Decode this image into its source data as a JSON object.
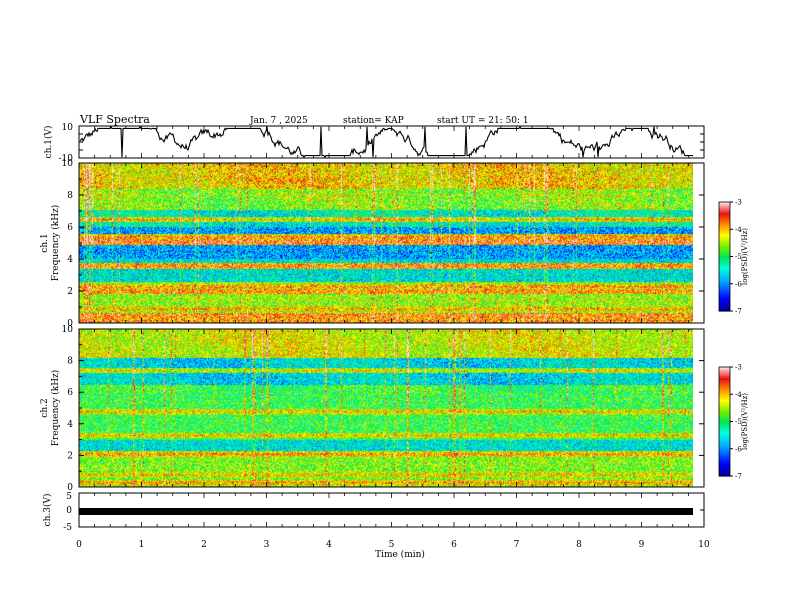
{
  "header": {
    "title": "VLF Spectra",
    "date": "Jan. 7 , 2025",
    "station": "station= KAP",
    "start": "start UT =  21: 50: 1"
  },
  "chart_data": [
    {
      "type": "line",
      "panel": "ch1-voltage",
      "ylabel": "ch.1(V)",
      "ylim": [
        -10,
        10
      ],
      "yticks": [
        "10",
        "-10"
      ],
      "x_range_min": [
        0,
        9.85
      ],
      "note": "Noisy voltage trace between about -8 and +8 V"
    },
    {
      "type": "heatmap",
      "panel": "ch1-spectrogram",
      "ylabel": "ch.1\nFrequency (kHz)",
      "ylabel_lines": [
        "ch.1",
        "Frequency (kHz)"
      ],
      "ylim": [
        0,
        10
      ],
      "yticks": [
        "0",
        "2",
        "4",
        "6",
        "8",
        "10"
      ],
      "xlim": [
        0,
        10
      ],
      "colorbar": {
        "label": "log(PSD)(V²/Hz)",
        "range": [
          -7,
          -3
        ],
        "ticks": [
          "-3",
          "-4",
          "-5",
          "-6",
          "-7"
        ]
      },
      "bands_khz": [
        {
          "f": 0.2,
          "level": -3.6
        },
        {
          "f": 0.5,
          "level": -3.5
        },
        {
          "f": 0.9,
          "level": -3.9
        },
        {
          "f": 1.5,
          "level": -4.6
        },
        {
          "f": 2.0,
          "level": -3.6
        },
        {
          "f": 2.3,
          "level": -3.8
        },
        {
          "f": 3.1,
          "level": -5.8
        },
        {
          "f": 3.6,
          "level": -3.6
        },
        {
          "f": 4.4,
          "level": -6.0
        },
        {
          "f": 5.1,
          "level": -3.4
        },
        {
          "f": 5.4,
          "level": -3.7
        },
        {
          "f": 5.9,
          "level": -6.2
        },
        {
          "f": 6.5,
          "level": -4.0
        },
        {
          "f": 7.0,
          "level": -5.4
        },
        {
          "f": 8.0,
          "level": -4.3
        },
        {
          "f": 9.0,
          "level": -4.0
        }
      ]
    },
    {
      "type": "heatmap",
      "panel": "ch2-spectrogram",
      "ylabel_lines": [
        "ch.2",
        "Frequency (kHz)"
      ],
      "ylim": [
        0,
        10
      ],
      "yticks": [
        "0",
        "2",
        "4",
        "6",
        "8",
        "10"
      ],
      "xlim": [
        0,
        10
      ],
      "colorbar": {
        "label": "log(PSD)(V²/Hz)",
        "range": [
          -7,
          -3
        ],
        "ticks": [
          "-3",
          "-4",
          "-5",
          "-6",
          "-7"
        ]
      },
      "bands_khz": [
        {
          "f": 0.3,
          "level": -3.8
        },
        {
          "f": 0.8,
          "level": -4.0
        },
        {
          "f": 1.6,
          "level": -4.7
        },
        {
          "f": 2.1,
          "level": -3.8
        },
        {
          "f": 2.6,
          "level": -5.6
        },
        {
          "f": 3.3,
          "level": -4.0
        },
        {
          "f": 4.1,
          "level": -5.1
        },
        {
          "f": 4.8,
          "level": -4.0
        },
        {
          "f": 5.5,
          "level": -4.8
        },
        {
          "f": 6.7,
          "level": -5.8
        },
        {
          "f": 7.4,
          "level": -4.2
        },
        {
          "f": 8.6,
          "level": -4.4
        }
      ]
    },
    {
      "type": "line",
      "panel": "ch3-voltage",
      "ylabel": "ch.3(V)",
      "ylim": [
        -5,
        5
      ],
      "yticks": [
        "5",
        "0",
        "-5"
      ],
      "xlim": [
        0,
        10
      ],
      "xlabel": "Time (min)",
      "xticks": [
        "0",
        "1",
        "2",
        "3",
        "4",
        "5",
        "6",
        "7",
        "8",
        "9",
        "10"
      ],
      "note": "Flat thick trace near -0.3 V"
    }
  ]
}
